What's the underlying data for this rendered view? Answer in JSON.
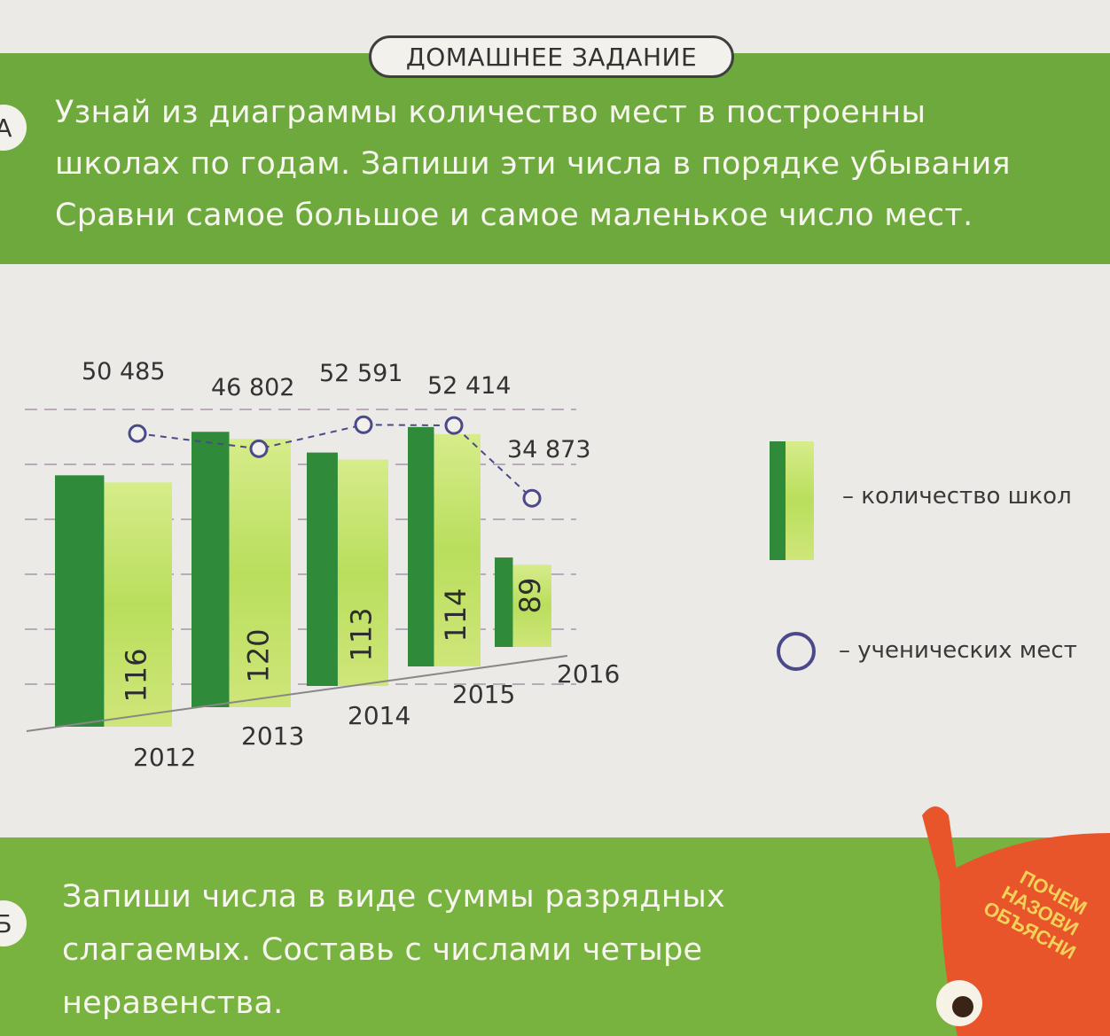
{
  "header": {
    "tag": "ДОМАШНЕЕ ЗАДАНИЕ"
  },
  "task_a": {
    "badge": "А",
    "lines": [
      "Узнай из диаграммы количество мест в построенны",
      "школах по годам. Запиши эти числа в порядке убывания",
      "Сравни самое большое и самое маленькое число мест."
    ]
  },
  "task_b": {
    "badge": "Б",
    "lines": [
      "Запиши числа в виде суммы разрядных",
      "слагаемых. Составь с числами четыре",
      "неравенства."
    ]
  },
  "mascot": {
    "sign_lines": [
      "ПОЧЕМ",
      "НАЗОВИ",
      "ОБЪЯСНИ"
    ]
  },
  "colors": {
    "band_top": "#6da93c",
    "band_bottom": "#78b23f",
    "bar_dark": "#2f8a3a",
    "bar_light": "#b9de5c",
    "line": "#4a4a8a"
  },
  "chart_data": {
    "type": "bar",
    "categories": [
      "2012",
      "2013",
      "2014",
      "2015",
      "2016"
    ],
    "series": [
      {
        "name": "количество школ",
        "type": "bar",
        "values": [
          116,
          120,
          113,
          114,
          89
        ],
        "value_labels": [
          "116",
          "120",
          "113",
          "114",
          "89"
        ]
      },
      {
        "name": "ученических мест",
        "type": "line",
        "values": [
          50485,
          46802,
          52591,
          52414,
          34873
        ],
        "value_labels": [
          "50 485",
          "46 802",
          "52 591",
          "52 414",
          "34 873"
        ]
      }
    ],
    "legend": {
      "placement": "right",
      "entries": [
        "– количество школ",
        "– ученических мест"
      ]
    },
    "grid": true
  }
}
